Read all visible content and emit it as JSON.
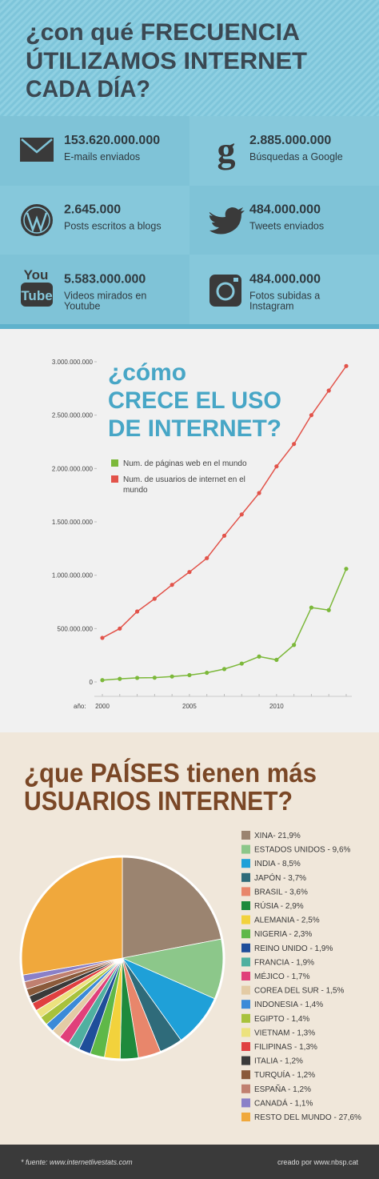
{
  "header": {
    "title": [
      "¿con qué FRECUENCIA",
      "ÚTILIZAMOS INTERNET",
      "CADA DÍA?"
    ]
  },
  "stats": [
    {
      "value": "153.620.000.000",
      "label": [
        "E-mails enviados"
      ]
    },
    {
      "value": "2.885.000.000",
      "label": [
        "Búsquedas a Google"
      ],
      "icon": "g"
    },
    {
      "value": "2.645.000",
      "label": [
        "Posts escritos a blogs"
      ]
    },
    {
      "value": "484.000.000",
      "label": [
        "Tweets enviados"
      ]
    },
    {
      "value": "5.583.000.000",
      "label": [
        "Videos mirados en",
        "Youtube"
      ],
      "icon": [
        "You",
        "Tube"
      ]
    },
    {
      "value": "484.000.000",
      "label": [
        "Fotos subidas a",
        "Instagram"
      ]
    }
  ],
  "chart_data": [
    {
      "type": "line",
      "title": [
        "¿cómo",
        "CRECE EL USO",
        "DE INTERNET?"
      ],
      "x_label": "año:",
      "x": [
        2000,
        2001,
        2002,
        2003,
        2004,
        2005,
        2006,
        2007,
        2008,
        2009,
        2010,
        2011,
        2012,
        2013,
        2014
      ],
      "xlim": [
        2000,
        2014
      ],
      "xticks": [
        2000,
        2005,
        2010
      ],
      "ylim": [
        0,
        3000000000
      ],
      "yticks": [
        0,
        {
          "value": 500000000,
          "label": "500.000.000"
        },
        {
          "value": 1000000000,
          "label": "1.000.000.000"
        },
        {
          "value": 1500000000,
          "label": "1.500.000.000"
        },
        {
          "value": 2000000000,
          "label": "2.000.000.000"
        },
        {
          "value": 2500000000,
          "label": "2.500.000.000"
        },
        {
          "value": 3000000000,
          "label": "3.000.000.000"
        }
      ],
      "series": [
        {
          "name": "Num. de páginas web en el mundo",
          "color": "#7cb83a",
          "values": [
            17000000,
            29000000,
            38000000,
            40000000,
            51000000,
            64000000,
            86000000,
            121000000,
            172000000,
            238000000,
            207000000,
            347000000,
            697000000,
            673000000,
            1060000000
          ]
        },
        {
          "name": "Num. de usuarios de internet en el mundo",
          "color": "#e2534a",
          "values": [
            413000000,
            500000000,
            660000000,
            780000000,
            910000000,
            1030000000,
            1160000000,
            1370000000,
            1570000000,
            1770000000,
            2020000000,
            2230000000,
            2500000000,
            2730000000,
            2960000000
          ]
        }
      ]
    },
    {
      "type": "pie",
      "title": [
        "¿que PAÍSES tienen más",
        "USUARIOS INTERNET?"
      ],
      "categories": [
        "XINA- 21,9%",
        "ESTADOS UNIDOS - 9,6%",
        "INDIA - 8,5%",
        "JAPÓN - 3,7%",
        "BRASIL - 3,6%",
        "RÚSIA - 2,9%",
        "ALEMANIA - 2,5%",
        "NIGERIA - 2,3%",
        "REINO UNIDO - 1,9%",
        "FRANCIA - 1,9%",
        "MÉJICO - 1,7%",
        "COREA DEL SUR - 1,5%",
        "INDONESIA - 1,4%",
        "EGIPTO - 1,4%",
        "VIETNAM - 1,3%",
        "FILIPINAS - 1,3%",
        "ITALIA - 1,2%",
        "TURQUÍA - 1,2%",
        "ESPAÑA - 1,2%",
        "CANADÁ - 1,1%",
        "RESTO DEL MUNDO - 27,6%"
      ],
      "values": [
        21.9,
        9.6,
        8.5,
        3.7,
        3.6,
        2.9,
        2.5,
        2.3,
        1.9,
        1.9,
        1.7,
        1.5,
        1.4,
        1.4,
        1.3,
        1.3,
        1.2,
        1.2,
        1.2,
        1.1,
        27.6
      ],
      "colors": [
        "#9b8470",
        "#8cc78a",
        "#1fa0d8",
        "#2f6b7a",
        "#e8866b",
        "#1e8a3c",
        "#f2d23c",
        "#5fb848",
        "#1f4e9a",
        "#4fb0a0",
        "#e0407a",
        "#e3cba5",
        "#3b8ad8",
        "#a8c23c",
        "#ece27e",
        "#e04040",
        "#3a3a3a",
        "#8a5a3a",
        "#c08070",
        "#8a80c8",
        "#f0a83c"
      ]
    }
  ],
  "footer": {
    "source": "* fuente: www.internetlivestats.com",
    "credit": "creado por www.nbsp.cat"
  }
}
